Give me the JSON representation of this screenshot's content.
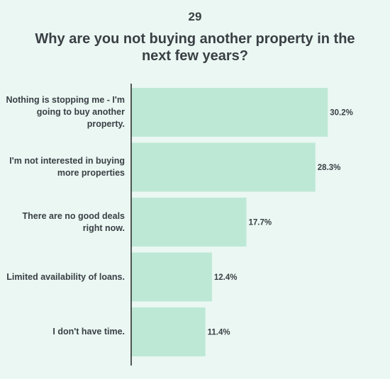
{
  "header": {
    "number": "29",
    "title": "Why are you not buying another property in the next few years?"
  },
  "chart_data": {
    "type": "bar",
    "orientation": "horizontal",
    "categories": [
      "Nothing is stopping me - I'm going to buy another property.",
      "I'm not interested in buying more properties",
      "There are no good deals right now.",
      "Limited availability of loans.",
      "I don't have time."
    ],
    "values": [
      30.2,
      28.3,
      17.7,
      12.4,
      11.4
    ],
    "value_labels": [
      "30.2%",
      "28.3%",
      "17.7%",
      "12.4%",
      "11.4%"
    ],
    "xlim": [
      0,
      35
    ],
    "grid": false,
    "bar_color": "#bde8d6",
    "axis_color": "#222222"
  }
}
